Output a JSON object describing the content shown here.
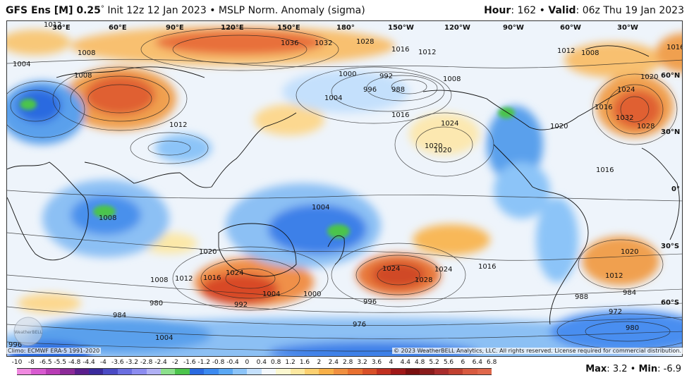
{
  "header": {
    "model": "GFS Ens [M] 0.25",
    "degree_mark": "°",
    "init": "Init 12z 12 Jan 2023",
    "separator": "•",
    "field": "MSLP Norm. Anomaly (sigma)",
    "hour_label": "Hour",
    "hour_value": "162",
    "valid_label": "Valid",
    "valid_value": "06z Thu 19 Jan 2023"
  },
  "map": {
    "longitude_labels": [
      "30°E",
      "60°E",
      "90°E",
      "120°E",
      "150°E",
      "180°",
      "150°W",
      "120°W",
      "90°W",
      "60°W",
      "30°W"
    ],
    "latitude_labels": [
      "60°N",
      "30°N",
      "0°",
      "30°S",
      "60°S"
    ],
    "isobar_labels": [
      "1012",
      "1008",
      "1004",
      "1036",
      "1032",
      "1028",
      "1016",
      "1012",
      "1000",
      "992",
      "988",
      "996",
      "1004",
      "1016",
      "1024",
      "1020",
      "1008",
      "1012",
      "1008",
      "1024",
      "1020",
      "1016",
      "1032",
      "1028",
      "1016",
      "1012",
      "1020",
      "1008",
      "1004",
      "1024",
      "1020",
      "1016",
      "1012",
      "1008",
      "1016",
      "1004",
      "1000",
      "992",
      "984",
      "980",
      "976",
      "972",
      "980",
      "984",
      "988",
      "996",
      "1004",
      "1008",
      "1020",
      "1024",
      "1028",
      "1024",
      "1020",
      "1016",
      "1012",
      "996"
    ],
    "watermark": "WeatherBELL"
  },
  "footer": {
    "climo": "Climo: ECMWF ERA-5 1991-2020",
    "copyright": "© 2023 WeatherBELL Analytics, LLC. All rights reserved. License required for commercial distribution."
  },
  "colorbar": {
    "ticks": [
      "-10",
      "-8",
      "-6.5",
      "-5.5",
      "-4.8",
      "-4.4",
      "-4",
      "-3.6",
      "-3.2",
      "-2.8",
      "-2.4",
      "-2",
      "-1.6",
      "-1.2",
      "-0.8",
      "-0.4",
      "0",
      "0.4",
      "0.8",
      "1.2",
      "1.6",
      "2",
      "2.4",
      "2.8",
      "3.2",
      "3.6",
      "4",
      "4.4",
      "4.8",
      "5.2",
      "5.6",
      "6",
      "6.4",
      "6.8"
    ],
    "colors": [
      "#f08ae0",
      "#d85ad0",
      "#b83cb4",
      "#8c2a98",
      "#5a1e8c",
      "#3a2a9c",
      "#4a4ac4",
      "#6a6ee0",
      "#8c8cf0",
      "#b0b0f4",
      "#8ce08c",
      "#4cc44c",
      "#2a6ae0",
      "#3c8af0",
      "#5aa8f4",
      "#8cc4f8",
      "#c4e0fc",
      "#f4f8fc",
      "#fcf8d0",
      "#fce8a0",
      "#fcd070",
      "#f8b048",
      "#f09040",
      "#e87030",
      "#d85028",
      "#c03020",
      "#a01818",
      "#7a1010",
      "#8a1c1c",
      "#a82c2c",
      "#c04030",
      "#d85a40",
      "#e0684c",
      "#b82424"
    ]
  },
  "stats": {
    "max_label": "Max",
    "max_value": "3.2",
    "min_label": "Min",
    "min_value": "-6.9"
  }
}
